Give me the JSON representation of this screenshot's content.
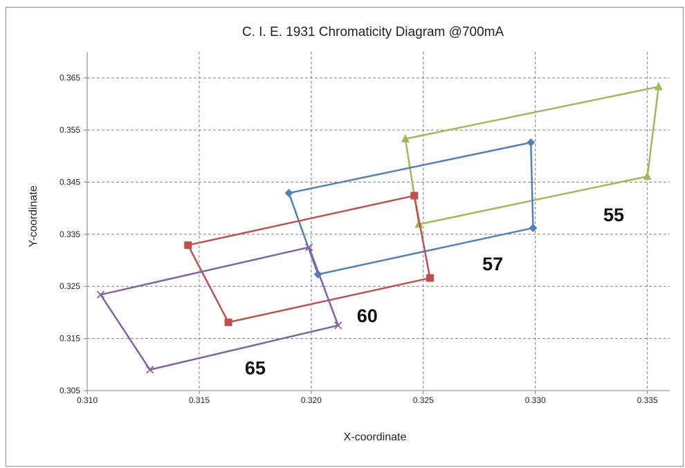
{
  "chart_data": {
    "type": "scatter",
    "title": "C. I. E. 1931 Chromaticity Diagram @700mA",
    "xlabel": "X-coordinate",
    "ylabel": "Y-coordinate",
    "xlim": [
      0.31,
      0.336
    ],
    "ylim": [
      0.305,
      0.37
    ],
    "x_ticks": [
      "0.310",
      "0.315",
      "0.320",
      "0.325",
      "0.330",
      "0.335"
    ],
    "x_tick_values": [
      0.31,
      0.315,
      0.32,
      0.325,
      0.33,
      0.335
    ],
    "y_ticks": [
      "0.305",
      "0.315",
      "0.325",
      "0.335",
      "0.345",
      "0.355",
      "0.365"
    ],
    "y_tick_values": [
      0.305,
      0.315,
      0.325,
      0.335,
      0.345,
      0.355,
      0.365
    ],
    "grid": true,
    "series": [
      {
        "color": "#9BBB59",
        "marker": "triangle",
        "x": [
          0.3242,
          0.3355,
          0.335,
          0.3248,
          0.3242
        ],
        "y": [
          0.3533,
          0.3633,
          0.3461,
          0.3369,
          0.3533
        ]
      },
      {
        "color": "#4F81BD",
        "marker": "diamond",
        "x": [
          0.319,
          0.3298,
          0.3299,
          0.3203,
          0.319
        ],
        "y": [
          0.3429,
          0.3526,
          0.3362,
          0.3273,
          0.3429
        ]
      },
      {
        "color": "#C0504D",
        "marker": "square",
        "x": [
          0.3145,
          0.3246,
          0.3253,
          0.3163,
          0.3145
        ],
        "y": [
          0.3329,
          0.3424,
          0.3266,
          0.3181,
          0.3329
        ]
      },
      {
        "color": "#8064A2",
        "marker": "x",
        "x": [
          0.3106,
          0.3199,
          0.3212,
          0.3128,
          0.3106
        ],
        "y": [
          0.3234,
          0.3325,
          0.3175,
          0.309,
          0.3234
        ]
      }
    ],
    "annotations": [
      {
        "text": "55",
        "x": 0.3335,
        "y": 0.3375
      },
      {
        "text": "57",
        "x": 0.3281,
        "y": 0.3281
      },
      {
        "text": "60",
        "x": 0.3225,
        "y": 0.3181
      },
      {
        "text": "65",
        "x": 0.3175,
        "y": 0.3081
      }
    ]
  }
}
